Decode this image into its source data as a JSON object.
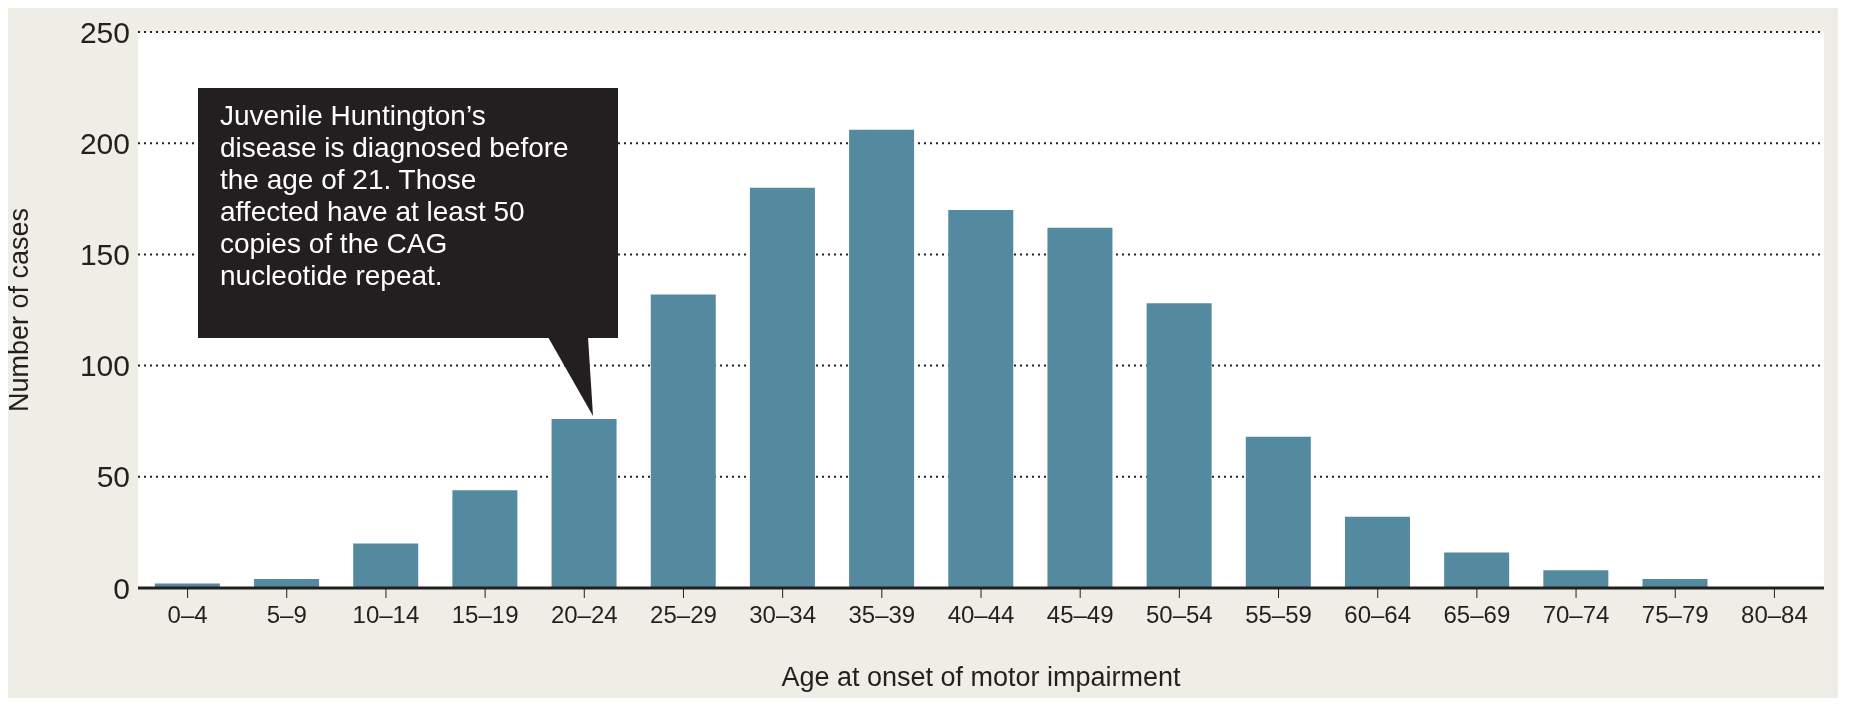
{
  "chart_data": {
    "type": "bar",
    "categories": [
      "0–4",
      "5–9",
      "10–14",
      "15–19",
      "20–24",
      "25–29",
      "30–34",
      "35–39",
      "40–44",
      "45–49",
      "50–54",
      "55–59",
      "60–64",
      "65–69",
      "70–74",
      "75–79",
      "80–84"
    ],
    "values": [
      2,
      4,
      20,
      44,
      76,
      132,
      180,
      206,
      170,
      162,
      128,
      68,
      32,
      16,
      8,
      4,
      0
    ],
    "color": "#548aa0",
    "xlabel": "Age at onset of motor impairment",
    "ylabel": "Number of cases",
    "ylim": [
      0,
      250
    ],
    "yticks": [
      0,
      50,
      100,
      150,
      200,
      250
    ],
    "grid": "y",
    "annotations": [
      "Juvenile Huntington’s disease is diagnosed before the age of 21. Those affected have at least 50 copies of the CAG nucleotide repeat."
    ]
  }
}
